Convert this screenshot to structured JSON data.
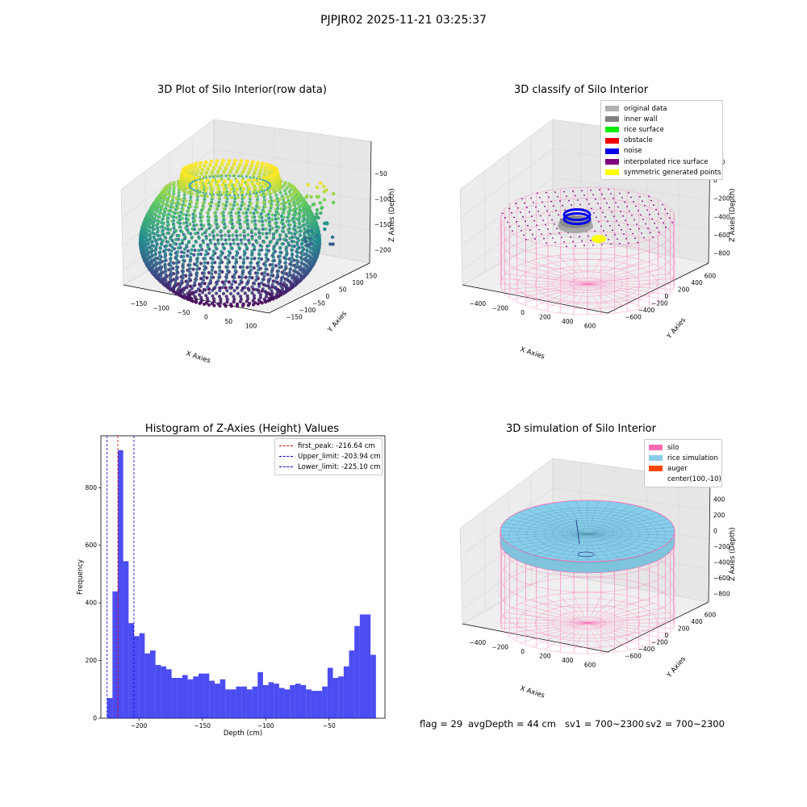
{
  "suptitle": "PJPJR02 2025-11-21 03:25:37",
  "status": {
    "flag": "flag = 29",
    "avg_depth": "avgDepth = 44 cm",
    "sv1": "sv1 = 700~2300",
    "sv2": "sv2 = 700~2300"
  },
  "chart_data": [
    {
      "type": "scatter",
      "projection": "3d",
      "title": "3D Plot of Silo Interior(row data)",
      "xlabel": "X Axies",
      "ylabel": "Y Axies",
      "zlabel": "Z Axies (Depth)",
      "x_ticks": [
        "−150",
        "−100",
        "−50",
        "0",
        "50",
        "100"
      ],
      "y_ticks": [
        "150",
        "100",
        "50",
        "0",
        "−50",
        "−100",
        "−150"
      ],
      "z_ticks": [
        "−50",
        "−100",
        "−150",
        "−200"
      ],
      "xlim": [
        -160,
        130
      ],
      "ylim": [
        -160,
        160
      ],
      "zlim": [
        -230,
        -15
      ],
      "colormap": "viridis",
      "grid": true
    },
    {
      "type": "scatter",
      "projection": "3d",
      "title": "3D classify of Silo Interior",
      "xlabel": "X Axies",
      "ylabel": "Y Axies",
      "zlabel": "Z Axies (Depth)",
      "x_ticks": [
        "−400",
        "−200",
        "0",
        "200",
        "400",
        "600"
      ],
      "y_ticks": [
        "600",
        "400",
        "200",
        "0",
        "−200",
        "−400",
        "−600"
      ],
      "z_ticks": [
        "200",
        "0",
        "−200",
        "−400",
        "−600",
        "−800"
      ],
      "legend_position": "top-right",
      "legend": [
        {
          "label": "original data",
          "color": "#b0b0b0"
        },
        {
          "label": "inner wall",
          "color": "#808080"
        },
        {
          "label": "rice surface",
          "color": "#00ee00"
        },
        {
          "label": "obstacle",
          "color": "#ee0000"
        },
        {
          "label": "noise",
          "color": "#0000ee"
        },
        {
          "label": "interpolated rice surface",
          "color": "#800080"
        },
        {
          "label": "symmetric generated points",
          "color": "#ffff00"
        }
      ],
      "grid": true
    },
    {
      "type": "bar",
      "title": "Histogram of Z-Axies (Height) Values",
      "xlabel": "Depth (cm)",
      "ylabel": "Frequency",
      "xlim": [
        -230,
        -6
      ],
      "ylim": [
        0,
        980
      ],
      "x_ticks": [
        -200,
        -150,
        -100,
        -50
      ],
      "y_ticks": [
        0,
        200,
        400,
        600,
        800
      ],
      "bin_start": -225.1,
      "bin_width": 4.24,
      "values": [
        70,
        440,
        930,
        545,
        330,
        285,
        295,
        225,
        235,
        185,
        180,
        170,
        140,
        140,
        150,
        135,
        145,
        155,
        155,
        130,
        120,
        135,
        100,
        100,
        110,
        110,
        100,
        110,
        160,
        115,
        125,
        120,
        105,
        100,
        115,
        120,
        115,
        100,
        95,
        95,
        110,
        175,
        140,
        145,
        180,
        235,
        320,
        360,
        360,
        220
      ],
      "bar_color": "#0000ee",
      "vlines": [
        {
          "label": "first_peak: -216.64 cm",
          "x": -216.64,
          "color": "#dd0000"
        },
        {
          "label": "Upper_limit: -203.94 cm",
          "x": -203.94,
          "color": "#0000cc"
        },
        {
          "label": "Lower_limit: -225.10 cm",
          "x": -225.1,
          "color": "#0000cc"
        }
      ],
      "legend_position": "top-right"
    },
    {
      "type": "surface",
      "projection": "3d",
      "title": "3D simulation of Silo Interior",
      "xlabel": "X Axies",
      "ylabel": "Y Axies",
      "zlabel": "Z Axies (Depth)",
      "x_ticks": [
        "−400",
        "−200",
        "0",
        "200",
        "400",
        "600"
      ],
      "y_ticks": [
        "600",
        "400",
        "200",
        "0",
        "−200",
        "−400",
        "−600"
      ],
      "z_ticks": [
        "400",
        "200",
        "0",
        "−200",
        "−400",
        "−600",
        "−800"
      ],
      "legend_position": "top-right",
      "legend": [
        {
          "label": "silo",
          "color": "#ff69b4"
        },
        {
          "label": "rice simulation",
          "color": "#87ceeb"
        },
        {
          "label": "auger",
          "color": "#ff4500"
        },
        {
          "label": "center(100,-10)",
          "color": ""
        }
      ],
      "grid": true
    }
  ]
}
